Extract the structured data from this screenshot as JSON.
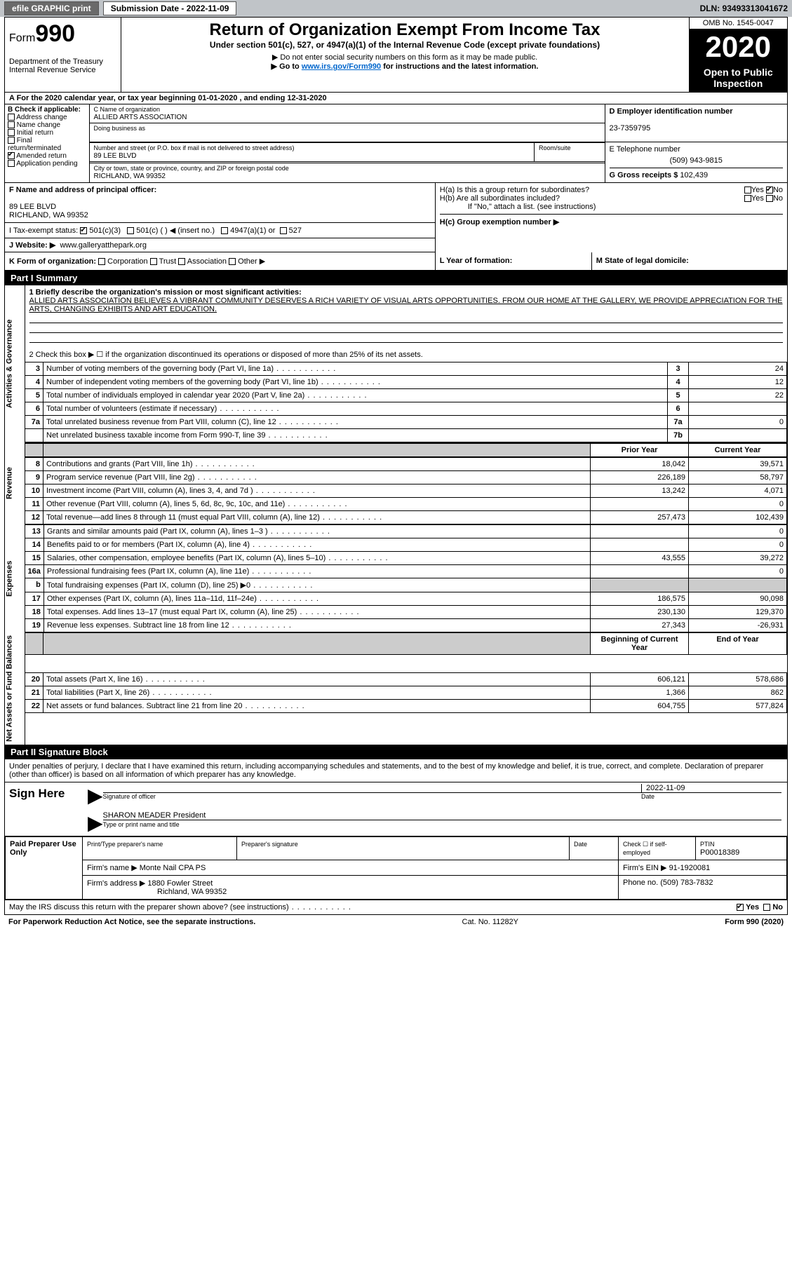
{
  "top": {
    "efile": "efile GRAPHIC print",
    "sub_label": "Submission Date - 2022-11-09",
    "dln": "DLN: 93493313041672"
  },
  "header": {
    "form_prefix": "Form",
    "form_no": "990",
    "dept": "Department of the Treasury",
    "irs": "Internal Revenue Service",
    "title": "Return of Organization Exempt From Income Tax",
    "sub": "Under section 501(c), 527, or 4947(a)(1) of the Internal Revenue Code (except private foundations)",
    "note1": "▶ Do not enter social security numbers on this form as it may be made public.",
    "note2_pre": "▶ Go to ",
    "note2_link": "www.irs.gov/Form990",
    "note2_post": " for instructions and the latest information.",
    "omb": "OMB No. 1545-0047",
    "year": "2020",
    "otp": "Open to Public Inspection"
  },
  "period": {
    "a": "A For the 2020 calendar year, or tax year beginning 01-01-2020    , and ending 12-31-2020"
  },
  "blockB": {
    "head": "B Check if applicable:",
    "items": [
      "Address change",
      "Name change",
      "Initial return",
      "Final return/terminated",
      "Amended return",
      "Application pending"
    ],
    "checked_idx": 4
  },
  "blockC": {
    "name_lbl": "C Name of organization",
    "name": "ALLIED ARTS ASSOCIATION",
    "dba_lbl": "Doing business as",
    "street_lbl": "Number and street (or P.O. box if mail is not delivered to street address)",
    "room_lbl": "Room/suite",
    "street": "89 LEE BLVD",
    "city_lbl": "City or town, state or province, country, and ZIP or foreign postal code",
    "city": "RICHLAND, WA  99352"
  },
  "blockD": {
    "lbl": "D Employer identification number",
    "ein": "23-7359795",
    "e_lbl": "E Telephone number",
    "phone": "(509) 943-9815",
    "g_lbl": "G Gross receipts $",
    "g_val": "102,439"
  },
  "blockF": {
    "lbl": "F Name and address of principal officer:",
    "l1": "89 LEE BLVD",
    "l2": "RICHLAND, WA  99352"
  },
  "blockH": {
    "a": "H(a)  Is this a group return for subordinates?",
    "b": "H(b)  Are all subordinates included?",
    "note": "If \"No,\" attach a list. (see instructions)",
    "c_lbl": "H(c)  Group exemption number ▶"
  },
  "taxI": {
    "lbl": "I   Tax-exempt status:",
    "o1": "501(c)(3)",
    "o2": "501(c) (  ) ◀ (insert no.)",
    "o3": "4947(a)(1) or",
    "o4": "527"
  },
  "siteJ": {
    "lbl": "J   Website: ▶",
    "url": "www.galleryatthepark.org"
  },
  "rowK": {
    "lbl": "K Form of organization:",
    "opts": [
      "Corporation",
      "Trust",
      "Association",
      "Other ▶"
    ],
    "l_lbl": "L Year of formation:",
    "m_lbl": "M State of legal domicile:"
  },
  "part1": {
    "hdr": "Part I     Summary",
    "q1_lbl": "1  Briefly describe the organization's mission or most significant activities:",
    "q1_txt": "ALLIED ARTS ASSOCIATION BELIEVES A VIBRANT COMMUNITY DESERVES A RICH VARIETY OF VISUAL ARTS OPPORTUNITIES. FROM OUR HOME AT THE GALLERY, WE PROVIDE APPRECIATION FOR THE ARTS, CHANGING EXHIBITS AND ART EDUCATION.",
    "q2": "2   Check this box ▶ ☐  if the organization discontinued its operations or disposed of more than 25% of its net assets.",
    "rows_a": [
      {
        "n": "3",
        "d": "Number of voting members of the governing body (Part VI, line 1a)",
        "box": "3",
        "v": "24"
      },
      {
        "n": "4",
        "d": "Number of independent voting members of the governing body (Part VI, line 1b)",
        "box": "4",
        "v": "12"
      },
      {
        "n": "5",
        "d": "Total number of individuals employed in calendar year 2020 (Part V, line 2a)",
        "box": "5",
        "v": "22"
      },
      {
        "n": "6",
        "d": "Total number of volunteers (estimate if necessary)",
        "box": "6",
        "v": ""
      },
      {
        "n": "7a",
        "d": "Total unrelated business revenue from Part VIII, column (C), line 12",
        "box": "7a",
        "v": "0"
      },
      {
        "n": "",
        "d": "Net unrelated business taxable income from Form 990-T, line 39",
        "box": "7b",
        "v": ""
      }
    ],
    "col_py": "Prior Year",
    "col_cy": "Current Year",
    "rows_rev": [
      {
        "n": "8",
        "d": "Contributions and grants (Part VIII, line 1h)",
        "py": "18,042",
        "cy": "39,571"
      },
      {
        "n": "9",
        "d": "Program service revenue (Part VIII, line 2g)",
        "py": "226,189",
        "cy": "58,797"
      },
      {
        "n": "10",
        "d": "Investment income (Part VIII, column (A), lines 3, 4, and 7d )",
        "py": "13,242",
        "cy": "4,071"
      },
      {
        "n": "11",
        "d": "Other revenue (Part VIII, column (A), lines 5, 6d, 8c, 9c, 10c, and 11e)",
        "py": "",
        "cy": "0"
      },
      {
        "n": "12",
        "d": "Total revenue—add lines 8 through 11 (must equal Part VIII, column (A), line 12)",
        "py": "257,473",
        "cy": "102,439"
      }
    ],
    "rows_exp": [
      {
        "n": "13",
        "d": "Grants and similar amounts paid (Part IX, column (A), lines 1–3 )",
        "py": "",
        "cy": "0"
      },
      {
        "n": "14",
        "d": "Benefits paid to or for members (Part IX, column (A), line 4)",
        "py": "",
        "cy": "0"
      },
      {
        "n": "15",
        "d": "Salaries, other compensation, employee benefits (Part IX, column (A), lines 5–10)",
        "py": "43,555",
        "cy": "39,272"
      },
      {
        "n": "16a",
        "d": "Professional fundraising fees (Part IX, column (A), line 11e)",
        "py": "",
        "cy": "0"
      },
      {
        "n": "b",
        "d": "Total fundraising expenses (Part IX, column (D), line 25) ▶0",
        "py": "shade",
        "cy": "shade"
      },
      {
        "n": "17",
        "d": "Other expenses (Part IX, column (A), lines 11a–11d, 11f–24e)",
        "py": "186,575",
        "cy": "90,098"
      },
      {
        "n": "18",
        "d": "Total expenses. Add lines 13–17 (must equal Part IX, column (A), line 25)",
        "py": "230,130",
        "cy": "129,370"
      },
      {
        "n": "19",
        "d": "Revenue less expenses. Subtract line 18 from line 12",
        "py": "27,343",
        "cy": "-26,931"
      }
    ],
    "col_boy": "Beginning of Current Year",
    "col_eoy": "End of Year",
    "rows_net": [
      {
        "n": "20",
        "d": "Total assets (Part X, line 16)",
        "py": "606,121",
        "cy": "578,686"
      },
      {
        "n": "21",
        "d": "Total liabilities (Part X, line 26)",
        "py": "1,366",
        "cy": "862"
      },
      {
        "n": "22",
        "d": "Net assets or fund balances. Subtract line 21 from line 20",
        "py": "604,755",
        "cy": "577,824"
      }
    ],
    "side_ag": "Activities & Governance",
    "side_rev": "Revenue",
    "side_exp": "Expenses",
    "side_net": "Net Assets or Fund Balances"
  },
  "part2": {
    "hdr": "Part II     Signature Block",
    "intro": "Under penalties of perjury, I declare that I have examined this return, including accompanying schedules and statements, and to the best of my knowledge and belief, it is true, correct, and complete. Declaration of preparer (other than officer) is based on all information of which preparer has any knowledge.",
    "sign_here": "Sign Here",
    "sig_of": "Signature of officer",
    "date": "Date",
    "sig_date": "2022-11-09",
    "officer": "SHARON MEADER  President",
    "type_name": "Type or print name and title",
    "paid": "Paid Preparer Use Only",
    "pp_name_lbl": "Print/Type preparer's name",
    "pp_sig_lbl": "Preparer's signature",
    "pp_date_lbl": "Date",
    "pp_check": "Check ☐ if self-employed",
    "ptin_lbl": "PTIN",
    "ptin": "P00018389",
    "firm_name_lbl": "Firm's name      ▶",
    "firm_name": "Monte Nail CPA PS",
    "firm_ein_lbl": "Firm's EIN ▶",
    "firm_ein": "91-1920081",
    "firm_addr_lbl": "Firm's address ▶",
    "firm_addr1": "1880 Fowler Street",
    "firm_addr2": "Richland, WA  99352",
    "firm_phone_lbl": "Phone no.",
    "firm_phone": "(509) 783-7832",
    "discuss": "May the IRS discuss this return with the preparer shown above? (see instructions)",
    "yes": "Yes",
    "no": "No"
  },
  "footer": {
    "pra": "For Paperwork Reduction Act Notice, see the separate instructions.",
    "cat": "Cat. No. 11282Y",
    "form": "Form 990 (2020)"
  }
}
